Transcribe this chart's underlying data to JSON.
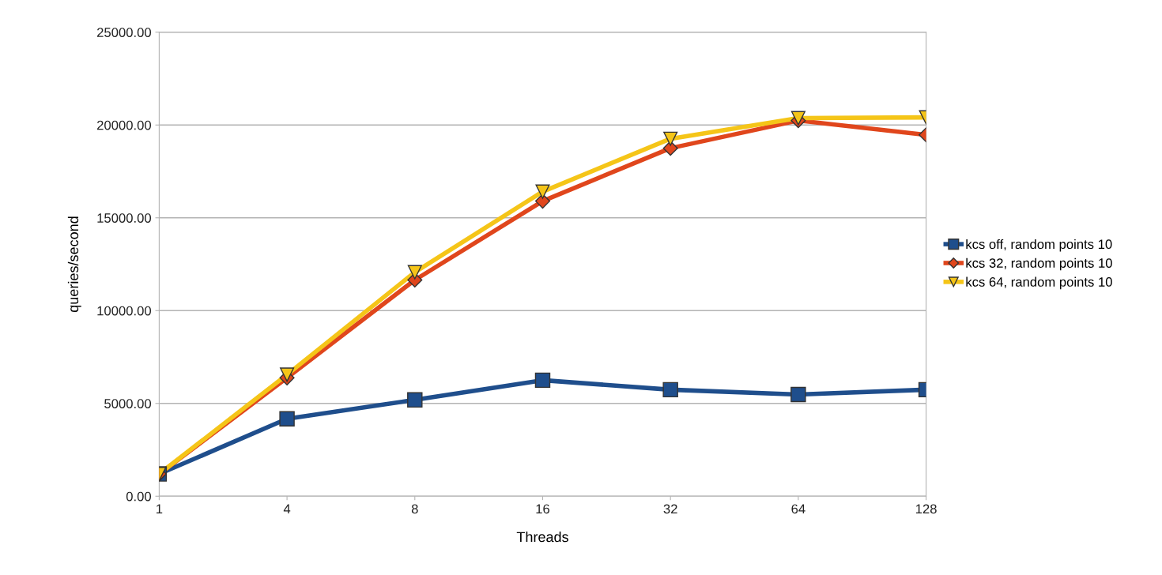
{
  "chart_data": {
    "type": "line",
    "xlabel": "Threads",
    "ylabel": "queries/second",
    "categories": [
      "1",
      "4",
      "8",
      "16",
      "32",
      "64",
      "128"
    ],
    "ylim": [
      0,
      25000
    ],
    "yticks": [
      {
        "value": 0,
        "label": "0.00"
      },
      {
        "value": 5000,
        "label": "5000.00"
      },
      {
        "value": 10000,
        "label": "10000.00"
      },
      {
        "value": 15000,
        "label": "15000.00"
      },
      {
        "value": 20000,
        "label": "20000.00"
      },
      {
        "value": 25000,
        "label": "25000.00"
      }
    ],
    "grid": "y",
    "legend": "right",
    "line_style": "solid",
    "series": [
      {
        "name": "kcs off, random points 10",
        "color": "#1f4e8c",
        "marker": "square",
        "values": [
          1200,
          4170,
          5190,
          6250,
          5740,
          5480,
          5740
        ]
      },
      {
        "name": "kcs 32, random points 10",
        "color": "#e0461c",
        "marker": "diamond",
        "values": [
          1200,
          6380,
          11650,
          15900,
          18750,
          20240,
          19470
        ]
      },
      {
        "name": "kcs 64, random points 10",
        "color": "#f5c518",
        "marker": "triangle",
        "values": [
          1200,
          6550,
          12070,
          16410,
          19260,
          20370,
          20410
        ]
      }
    ]
  }
}
